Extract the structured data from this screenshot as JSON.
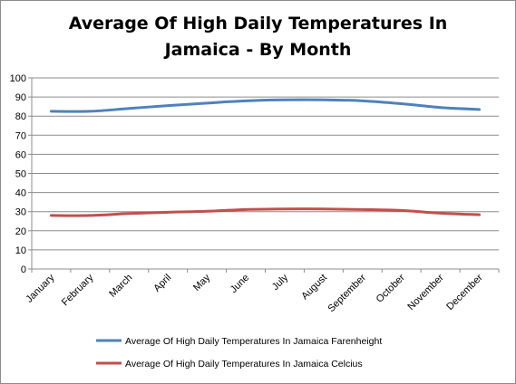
{
  "chart_data": {
    "type": "line",
    "title_lines": [
      "Average Of High Daily Temperatures In",
      "Jamaica - By Month"
    ],
    "categories": [
      "January",
      "February",
      "March",
      "April",
      "May",
      "June",
      "July",
      "August",
      "September",
      "October",
      "November",
      "December"
    ],
    "ylim": [
      0,
      100
    ],
    "yticks": [
      0,
      10,
      20,
      30,
      40,
      50,
      60,
      70,
      80,
      90,
      100
    ],
    "grid": true,
    "legend_position": "bottom",
    "series": [
      {
        "name": "Average Of High Daily Temperatures In Jamaica  Farenheight",
        "color": "#4f81bd",
        "values": [
          82.5,
          82.5,
          84,
          85.5,
          86.8,
          88,
          88.5,
          88.5,
          88,
          86.5,
          84.5,
          83.5
        ]
      },
      {
        "name": "Average Of High Daily Temperatures In Jamaica  Celcius",
        "color": "#c0504d",
        "values": [
          28,
          28,
          29,
          29.7,
          30.2,
          31.1,
          31.4,
          31.4,
          31.1,
          30.6,
          29.2,
          28.4
        ]
      }
    ]
  }
}
